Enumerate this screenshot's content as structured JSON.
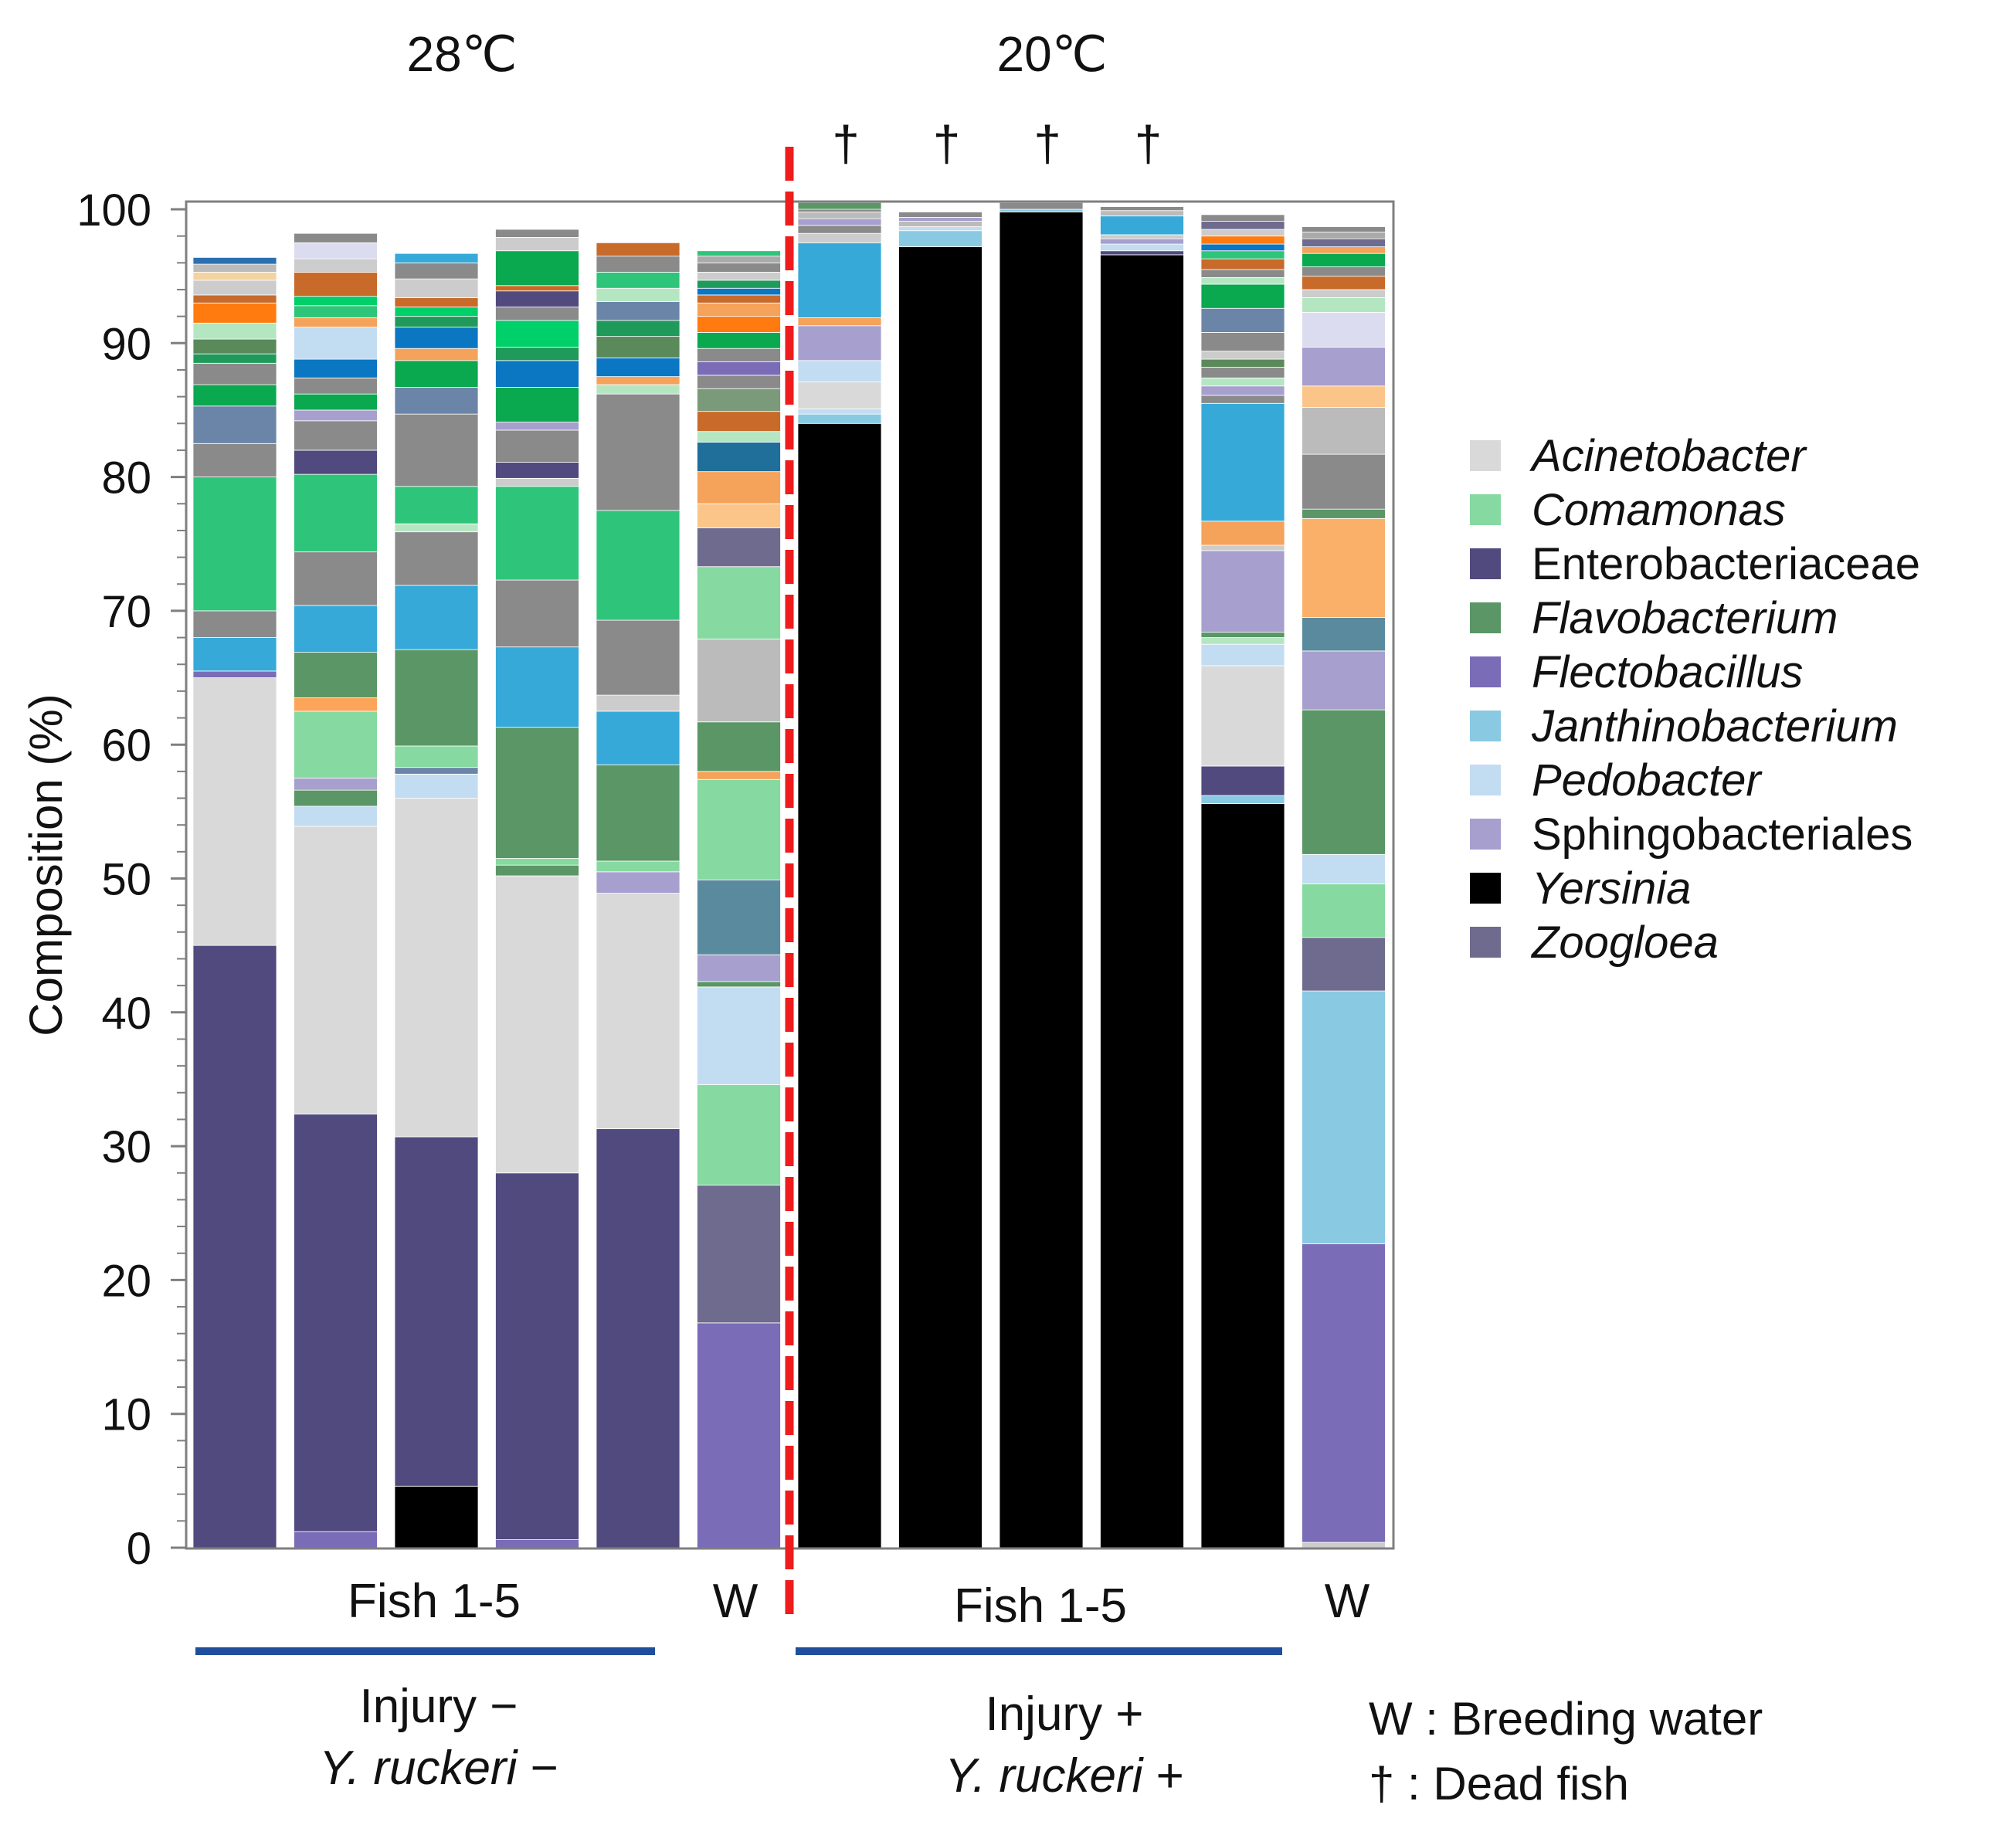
{
  "chart_data": {
    "type": "stacked-bar",
    "ylabel": "Composition (%)",
    "ylim": [
      0,
      100
    ],
    "yticks": [
      0,
      10,
      20,
      30,
      40,
      50,
      60,
      70,
      80,
      90,
      100
    ],
    "temperature_labels": [
      "28℃",
      "20℃"
    ],
    "dead_marker": "†",
    "group_labels": {
      "fish_left": "Fish 1-5",
      "water_left": "W",
      "fish_right": "Fish 1-5",
      "water_right": "W"
    },
    "conditions": [
      {
        "line1": "Injury −",
        "line2": "Y. ruckeri",
        "line2_sign": " −"
      },
      {
        "line1": "Injury +",
        "line2": "Y. ruckeri",
        "line2_sign": " +"
      }
    ],
    "footnotes": [
      "W : Breeding water",
      "† : Dead fish"
    ],
    "legend": [
      {
        "name": "Acinetobacter",
        "color": "#d9d9d9",
        "italic": true
      },
      {
        "name": "Comamonas",
        "color": "#86d9a0",
        "italic": true
      },
      {
        "name": "Enterobacteriaceae",
        "color": "#514a7e",
        "italic": false
      },
      {
        "name": "Flavobacterium",
        "color": "#5a9666",
        "italic": true
      },
      {
        "name": "Flectobacillus",
        "color": "#7a6cb6",
        "italic": true
      },
      {
        "name": "Janthinobacterium",
        "color": "#89c9e2",
        "italic": true
      },
      {
        "name": "Pedobacter",
        "color": "#c2dcf2",
        "italic": true
      },
      {
        "name": "Sphingobacteriales",
        "color": "#a79fce",
        "italic": false
      },
      {
        "name": "Yersinia",
        "color": "#000000",
        "italic": true
      },
      {
        "name": "Zoogloea",
        "color": "#6f6b8e",
        "italic": true
      }
    ],
    "bars": [
      {
        "name": "28C Fish 1",
        "dead": false,
        "segments": [
          [
            "#514a7e",
            45
          ],
          [
            "#d9d9d9",
            20
          ],
          [
            "#7a6cb6",
            0.5
          ],
          [
            "#36a9d8",
            2.5
          ],
          [
            "#8a8a8a",
            2
          ],
          [
            "#2ec57a",
            10
          ],
          [
            "#8a8a8a",
            2.5
          ],
          [
            "#6a85a8",
            2.8
          ],
          [
            "#0aa84f",
            1.6
          ],
          [
            "#8a8a8a",
            1.6
          ],
          [
            "#1f9a5a",
            0.7
          ],
          [
            "#5a8a5a",
            1.1
          ],
          [
            "#b5e6c2",
            1.2
          ],
          [
            "#ff7a0f",
            1.5
          ],
          [
            "#c86a2a",
            0.6
          ],
          [
            "#cccccc",
            1.1
          ],
          [
            "#f5d3a0",
            0.6
          ],
          [
            "#bbbbbb",
            0.6
          ],
          [
            "#2a6fb0",
            0.5
          ]
        ]
      },
      {
        "name": "28C Fish 2",
        "dead": false,
        "segments": [
          [
            "#7a6cb6",
            1.2
          ],
          [
            "#514a7e",
            31.2
          ],
          [
            "#d9d9d9",
            21.5
          ],
          [
            "#c2dcf2",
            1.5
          ],
          [
            "#5a9666",
            1.2
          ],
          [
            "#a79fce",
            0.9
          ],
          [
            "#86d9a0",
            5
          ],
          [
            "#fba45a",
            1
          ],
          [
            "#5a9666",
            3.4
          ],
          [
            "#36a9d8",
            3.5
          ],
          [
            "#8a8a8a",
            4
          ],
          [
            "#2ec57a",
            5.8
          ],
          [
            "#514a7e",
            1.8
          ],
          [
            "#8a8a8a",
            2.2
          ],
          [
            "#a79fce",
            0.8
          ],
          [
            "#0aa84f",
            1.2
          ],
          [
            "#8a8a8a",
            1.2
          ],
          [
            "#0b77c2",
            1.4
          ],
          [
            "#c2dcf2",
            2.4
          ],
          [
            "#f5a25a",
            0.7
          ],
          [
            "#2ec57a",
            0.9
          ],
          [
            "#00d06a",
            0.7
          ],
          [
            "#c86a2a",
            1.8
          ],
          [
            "#cccccc",
            1
          ],
          [
            "#dcdcf0",
            1.2
          ],
          [
            "#8a8a8a",
            0.7
          ]
        ]
      },
      {
        "name": "28C Fish 3",
        "dead": false,
        "segments": [
          [
            "#000000",
            4.6
          ],
          [
            "#514a7e",
            26.1
          ],
          [
            "#d9d9d9",
            25.3
          ],
          [
            "#c2dcf2",
            1.8
          ],
          [
            "#6a85a8",
            0.5
          ],
          [
            "#86d9a0",
            1.6
          ],
          [
            "#5a9666",
            7.2
          ],
          [
            "#36a9d8",
            4.8
          ],
          [
            "#8a8a8a",
            4
          ],
          [
            "#b5e6c2",
            0.6
          ],
          [
            "#2ec57a",
            2.8
          ],
          [
            "#8a8a8a",
            5.4
          ],
          [
            "#6a85a8",
            2
          ],
          [
            "#0aa84f",
            2
          ],
          [
            "#f5a25a",
            0.9
          ],
          [
            "#0b77c2",
            1.6
          ],
          [
            "#1f9a5a",
            0.8
          ],
          [
            "#00d06a",
            0.7
          ],
          [
            "#c86a2a",
            0.7
          ],
          [
            "#cccccc",
            1.4
          ],
          [
            "#8a8a8a",
            1.2
          ],
          [
            "#36a9d8",
            0.7
          ]
        ]
      },
      {
        "name": "28C Fish 4",
        "dead": false,
        "segments": [
          [
            "#7a6cb6",
            0.6
          ],
          [
            "#514a7e",
            27.4
          ],
          [
            "#d9d9d9",
            22.2
          ],
          [
            "#5a9666",
            0.8
          ],
          [
            "#86d9a0",
            0.5
          ],
          [
            "#5a9666",
            9.8
          ],
          [
            "#36a9d8",
            6
          ],
          [
            "#8a8a8a",
            5
          ],
          [
            "#2ec57a",
            7
          ],
          [
            "#cccccc",
            0.6
          ],
          [
            "#514a7e",
            1.2
          ],
          [
            "#8a8a8a",
            2.4
          ],
          [
            "#a79fce",
            0.6
          ],
          [
            "#0aa84f",
            2.6
          ],
          [
            "#0b77c2",
            2
          ],
          [
            "#1f9a5a",
            1
          ],
          [
            "#00d06a",
            2
          ],
          [
            "#8a8a8a",
            1
          ],
          [
            "#514a7e",
            1.2
          ],
          [
            "#c86a2a",
            0.4
          ],
          [
            "#0aa84f",
            2.6
          ],
          [
            "#cccccc",
            1
          ],
          [
            "#8a8a8a",
            0.6
          ]
        ]
      },
      {
        "name": "28C Fish 5",
        "dead": false,
        "segments": [
          [
            "#514a7e",
            31.3
          ],
          [
            "#d9d9d9",
            17.6
          ],
          [
            "#a79fce",
            1.6
          ],
          [
            "#86d9a0",
            0.8
          ],
          [
            "#5a9666",
            7.2
          ],
          [
            "#36a9d8",
            4
          ],
          [
            "#cccccc",
            1.2
          ],
          [
            "#8a8a8a",
            5.6
          ],
          [
            "#2ec57a",
            8.2
          ],
          [
            "#8a8a8a",
            8.7
          ],
          [
            "#b5e6c2",
            0.7
          ],
          [
            "#f5a25a",
            0.6
          ],
          [
            "#0b77c2",
            1.4
          ],
          [
            "#5a8a5a",
            1.6
          ],
          [
            "#1f9a5a",
            1.2
          ],
          [
            "#6a85a8",
            1.4
          ],
          [
            "#b5e6c2",
            1
          ],
          [
            "#2ec57a",
            1.2
          ],
          [
            "#8a8a8a",
            1.2
          ],
          [
            "#c86a2a",
            1
          ]
        ]
      },
      {
        "name": "28C W",
        "dead": false,
        "segments": [
          [
            "#7a6cb6",
            16.8
          ],
          [
            "#6f6b8e",
            10.3
          ],
          [
            "#86d9a0",
            7.5
          ],
          [
            "#c2dcf2",
            7.3
          ],
          [
            "#5a9666",
            0.4
          ],
          [
            "#a79fce",
            2
          ],
          [
            "#5a8a9e",
            5.6
          ],
          [
            "#86d9a0",
            7.5
          ],
          [
            "#f5a25a",
            0.6
          ],
          [
            "#5a9666",
            3.7
          ],
          [
            "#bbbbbb",
            6.2
          ],
          [
            "#86d9a0",
            5.4
          ],
          [
            "#6f6b8e",
            2.9
          ],
          [
            "#fbc58a",
            1.8
          ],
          [
            "#f5a25a",
            2.4
          ],
          [
            "#1f6f9a",
            2.2
          ],
          [
            "#b5e6c2",
            0.8
          ],
          [
            "#c86a2a",
            1.5
          ],
          [
            "#7a9a7a",
            1.7
          ],
          [
            "#8a8a8a",
            1
          ],
          [
            "#7a6cb6",
            1
          ],
          [
            "#8a8a8a",
            1
          ],
          [
            "#0aa84f",
            1.2
          ],
          [
            "#ff7a0f",
            1.2
          ],
          [
            "#f5a25a",
            1
          ],
          [
            "#c86a2a",
            0.6
          ],
          [
            "#0b77c2",
            0.5
          ],
          [
            "#1f9a5a",
            0.6
          ],
          [
            "#cccccc",
            0.6
          ],
          [
            "#8a8a8a",
            0.7
          ],
          [
            "#aaaaaa",
            0.5
          ],
          [
            "#2ec57a",
            0.4
          ]
        ]
      },
      {
        "name": "20C Fish 1",
        "dead": true,
        "segments": [
          [
            "#000000",
            84
          ],
          [
            "#89c9e2",
            0.7
          ],
          [
            "#c2dcf2",
            0.4
          ],
          [
            "#d9d9d9",
            2
          ],
          [
            "#c2dcf2",
            1.6
          ],
          [
            "#a79fce",
            2.6
          ],
          [
            "#f5a25a",
            0.6
          ],
          [
            "#36a9d8",
            5.6
          ],
          [
            "#cccccc",
            0.7
          ],
          [
            "#8a8a8a",
            0.6
          ],
          [
            "#a79fce",
            0.5
          ],
          [
            "#bbbbbb",
            0.5
          ],
          [
            "#8a8a8a",
            0.4
          ],
          [
            "#5a9666",
            0.3
          ]
        ]
      },
      {
        "name": "20C Fish 2",
        "dead": true,
        "segments": [
          [
            "#000000",
            97.2
          ],
          [
            "#89c9e2",
            1.2
          ],
          [
            "#c2dcf2",
            0.3
          ],
          [
            "#bbbbbb",
            0.4
          ],
          [
            "#a79fce",
            0.3
          ],
          [
            "#8a8a8a",
            0.4
          ]
        ]
      },
      {
        "name": "20C Fish 3",
        "dead": true,
        "segments": [
          [
            "#000000",
            99.8
          ],
          [
            "#89c9e2",
            0.2
          ],
          [
            "#a79fce",
            0.3
          ],
          [
            "#8a8a8a",
            0.2
          ]
        ]
      },
      {
        "name": "20C Fish 4",
        "dead": true,
        "segments": [
          [
            "#000000",
            96.6
          ],
          [
            "#514a7e",
            0.3
          ],
          [
            "#c2dcf2",
            0.5
          ],
          [
            "#a79fce",
            0.4
          ],
          [
            "#cccccc",
            0.3
          ],
          [
            "#36a9d8",
            1.4
          ],
          [
            "#bbbbbb",
            0.4
          ],
          [
            "#8a8a8a",
            0.3
          ]
        ]
      },
      {
        "name": "20C Fish 5",
        "dead": false,
        "segments": [
          [
            "#000000",
            55.6
          ],
          [
            "#89c9e2",
            0.6
          ],
          [
            "#514a7e",
            2.2
          ],
          [
            "#d9d9d9",
            7.5
          ],
          [
            "#c2dcf2",
            1.6
          ],
          [
            "#b5e6c2",
            0.5
          ],
          [
            "#5a9666",
            0.4
          ],
          [
            "#a79fce",
            6.1
          ],
          [
            "#cccccc",
            0.4
          ],
          [
            "#f5a25a",
            1.8
          ],
          [
            "#36a9d8",
            8.8
          ],
          [
            "#8a8a8a",
            0.6
          ],
          [
            "#a79fce",
            0.7
          ],
          [
            "#b5e6c2",
            0.6
          ],
          [
            "#8a8a8a",
            0.8
          ],
          [
            "#5a8a5a",
            0.6
          ],
          [
            "#cccccc",
            0.6
          ],
          [
            "#8a8a8a",
            1.4
          ],
          [
            "#6a85a8",
            1.8
          ],
          [
            "#0aa84f",
            1.8
          ],
          [
            "#b5e6c2",
            0.5
          ],
          [
            "#8a8a8a",
            0.6
          ],
          [
            "#c86a2a",
            0.8
          ],
          [
            "#2ec57a",
            0.6
          ],
          [
            "#0b77c2",
            0.5
          ],
          [
            "#ff7a0f",
            0.6
          ],
          [
            "#cccccc",
            0.5
          ],
          [
            "#6f6b8e",
            0.6
          ],
          [
            "#8a8a8a",
            0.5
          ]
        ]
      },
      {
        "name": "20C W",
        "dead": false,
        "segments": [
          [
            "#cccccc",
            0.4
          ],
          [
            "#7a6cb6",
            22.3
          ],
          [
            "#89c9e2",
            18.9
          ],
          [
            "#6f6b8e",
            4
          ],
          [
            "#86d9a0",
            4
          ],
          [
            "#c2dcf2",
            2.2
          ],
          [
            "#5a9666",
            10.8
          ],
          [
            "#a79fce",
            4.4
          ],
          [
            "#5a8a9e",
            2.5
          ],
          [
            "#fbb06a",
            7.4
          ],
          [
            "#5a9666",
            0.7
          ],
          [
            "#8a8a8a",
            4.1
          ],
          [
            "#bbbbbb",
            3.5
          ],
          [
            "#fbc58a",
            1.6
          ],
          [
            "#a79fce",
            2.9
          ],
          [
            "#dcdcf0",
            2.6
          ],
          [
            "#b5e6c2",
            1.1
          ],
          [
            "#cccccc",
            0.6
          ],
          [
            "#c86a2a",
            1
          ],
          [
            "#8a8a8a",
            0.7
          ],
          [
            "#0aa84f",
            1
          ],
          [
            "#f5a25a",
            0.5
          ],
          [
            "#6f6b8e",
            0.6
          ],
          [
            "#aaaaaa",
            0.5
          ],
          [
            "#8a8a8a",
            0.4
          ]
        ]
      }
    ]
  }
}
